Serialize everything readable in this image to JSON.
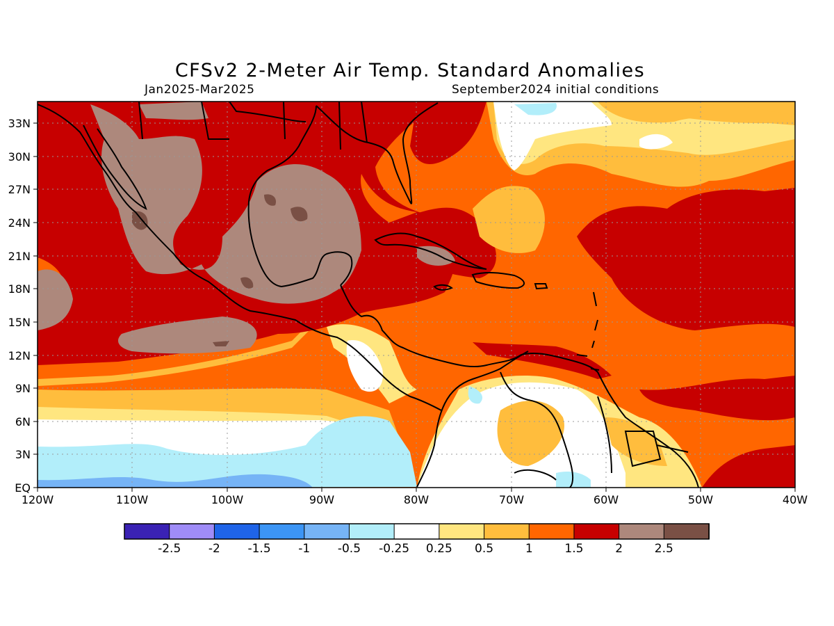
{
  "title": "CFSv2 2-Meter Air Temp. Standard Anomalies",
  "subtitle_left": "Jan2025-Mar2025",
  "subtitle_right": "September2024 initial conditions",
  "map": {
    "lon_range": [
      -120,
      -40
    ],
    "lat_range": [
      0,
      35
    ],
    "lat_ticks": [
      "33N",
      "30N",
      "27N",
      "24N",
      "21N",
      "18N",
      "15N",
      "12N",
      "9N",
      "6N",
      "3N",
      "EQ"
    ],
    "lon_ticks": [
      "120W",
      "110W",
      "100W",
      "90W",
      "80W",
      "70W",
      "60W",
      "50W",
      "40W"
    ],
    "grid": "dotted",
    "region": "Gulf of Mexico, Caribbean and tropical Atlantic"
  },
  "colorbar": {
    "colors": [
      "#3a22b4",
      "#9f8cf8",
      "#1f64e8",
      "#3c95f5",
      "#76b4f6",
      "#b2eefa",
      "#ffffff",
      "#ffe680",
      "#ffbd3d",
      "#ff6600",
      "#c70000",
      "#ad887c",
      "#7a5045"
    ],
    "labels": [
      "-2.5",
      "-2",
      "-1.5",
      "-1",
      "-0.5",
      "-0.25",
      "0.25",
      "0.5",
      "1",
      "1.5",
      "2",
      "2.5"
    ]
  }
}
